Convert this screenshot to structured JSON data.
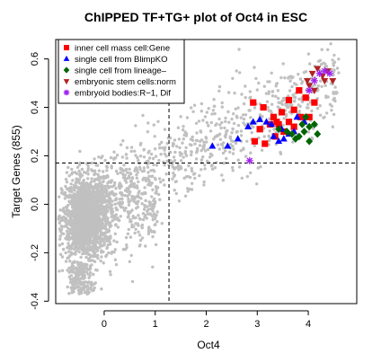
{
  "chart_data": {
    "type": "scatter",
    "title": "ChIPPED TF+TG+ plot of Oct4 in ESC",
    "xlabel": "Oct4",
    "ylabel": "Target Genes (855)",
    "xlim": [
      -0.95,
      4.95
    ],
    "ylim": [
      -0.41,
      0.68
    ],
    "xticks": [
      "0",
      "1",
      "2",
      "3",
      "4"
    ],
    "xtick_values": [
      0,
      1,
      2,
      3,
      4
    ],
    "yticks": [
      "-0.4",
      "-0.2",
      "0.0",
      "0.2",
      "0.4",
      "0.6"
    ],
    "ytick_values": [
      -0.4,
      -0.2,
      0.0,
      0.2,
      0.4,
      0.6
    ],
    "reference_lines": {
      "x": 1.27,
      "y": 0.17,
      "style": "dashed"
    },
    "legend_placement": "top-left",
    "background_color": "#c0c0c0",
    "series": [
      {
        "name": "inner cell mass cell:Gene",
        "marker": "square",
        "color": "#ff0000",
        "points": [
          [
            2.92,
            0.42
          ],
          [
            3.12,
            0.4
          ],
          [
            3.32,
            0.36
          ],
          [
            3.38,
            0.34
          ],
          [
            3.42,
            0.33
          ],
          [
            3.25,
            0.33
          ],
          [
            3.05,
            0.31
          ],
          [
            3.48,
            0.38
          ],
          [
            3.62,
            0.43
          ],
          [
            3.72,
            0.39
          ],
          [
            3.82,
            0.47
          ],
          [
            3.95,
            0.44
          ],
          [
            3.62,
            0.34
          ],
          [
            3.52,
            0.3
          ],
          [
            3.35,
            0.28
          ],
          [
            4.02,
            0.36
          ],
          [
            4.12,
            0.42
          ],
          [
            3.85,
            0.36
          ],
          [
            3.15,
            0.25
          ],
          [
            2.95,
            0.26
          ],
          [
            3.72,
            0.32
          ]
        ]
      },
      {
        "name": "single cell from BlimpKO",
        "marker": "triangle",
        "color": "#0000ff",
        "points": [
          [
            2.12,
            0.24
          ],
          [
            2.42,
            0.24
          ],
          [
            2.62,
            0.27
          ],
          [
            2.82,
            0.32
          ],
          [
            2.92,
            0.34
          ],
          [
            3.05,
            0.35
          ],
          [
            3.18,
            0.34
          ],
          [
            3.28,
            0.33
          ],
          [
            3.32,
            0.28
          ],
          [
            3.42,
            0.26
          ],
          [
            3.52,
            0.27
          ],
          [
            3.62,
            0.29
          ],
          [
            3.72,
            0.3
          ],
          [
            3.78,
            0.36
          ],
          [
            3.92,
            0.34
          ],
          [
            3.48,
            0.31
          ]
        ]
      },
      {
        "name": "single cell from lineage–",
        "marker": "diamond",
        "color": "#006400",
        "points": [
          [
            3.42,
            0.31
          ],
          [
            3.58,
            0.3
          ],
          [
            3.68,
            0.29
          ],
          [
            3.82,
            0.28
          ],
          [
            3.92,
            0.3
          ],
          [
            4.02,
            0.32
          ],
          [
            4.12,
            0.33
          ],
          [
            3.95,
            0.36
          ],
          [
            4.18,
            0.29
          ],
          [
            4.02,
            0.26
          ],
          [
            3.88,
            0.33
          ],
          [
            3.75,
            0.27
          ]
        ]
      },
      {
        "name": "embryonic stem cells:norm",
        "marker": "triangle-down",
        "color": "#b22222",
        "points": [
          [
            3.98,
            0.51
          ],
          [
            4.08,
            0.54
          ],
          [
            4.18,
            0.56
          ],
          [
            4.28,
            0.53
          ],
          [
            4.38,
            0.55
          ],
          [
            4.48,
            0.51
          ],
          [
            4.02,
            0.49
          ],
          [
            4.12,
            0.47
          ],
          [
            4.32,
            0.51
          ]
        ]
      },
      {
        "name": "embryoid bodies:R−1, Dif",
        "marker": "asterisk",
        "color": "#a020f0",
        "points": [
          [
            4.02,
            0.47
          ],
          [
            4.22,
            0.54
          ],
          [
            4.32,
            0.55
          ],
          [
            4.42,
            0.54
          ],
          [
            4.12,
            0.51
          ],
          [
            2.85,
            0.18
          ]
        ]
      }
    ]
  }
}
